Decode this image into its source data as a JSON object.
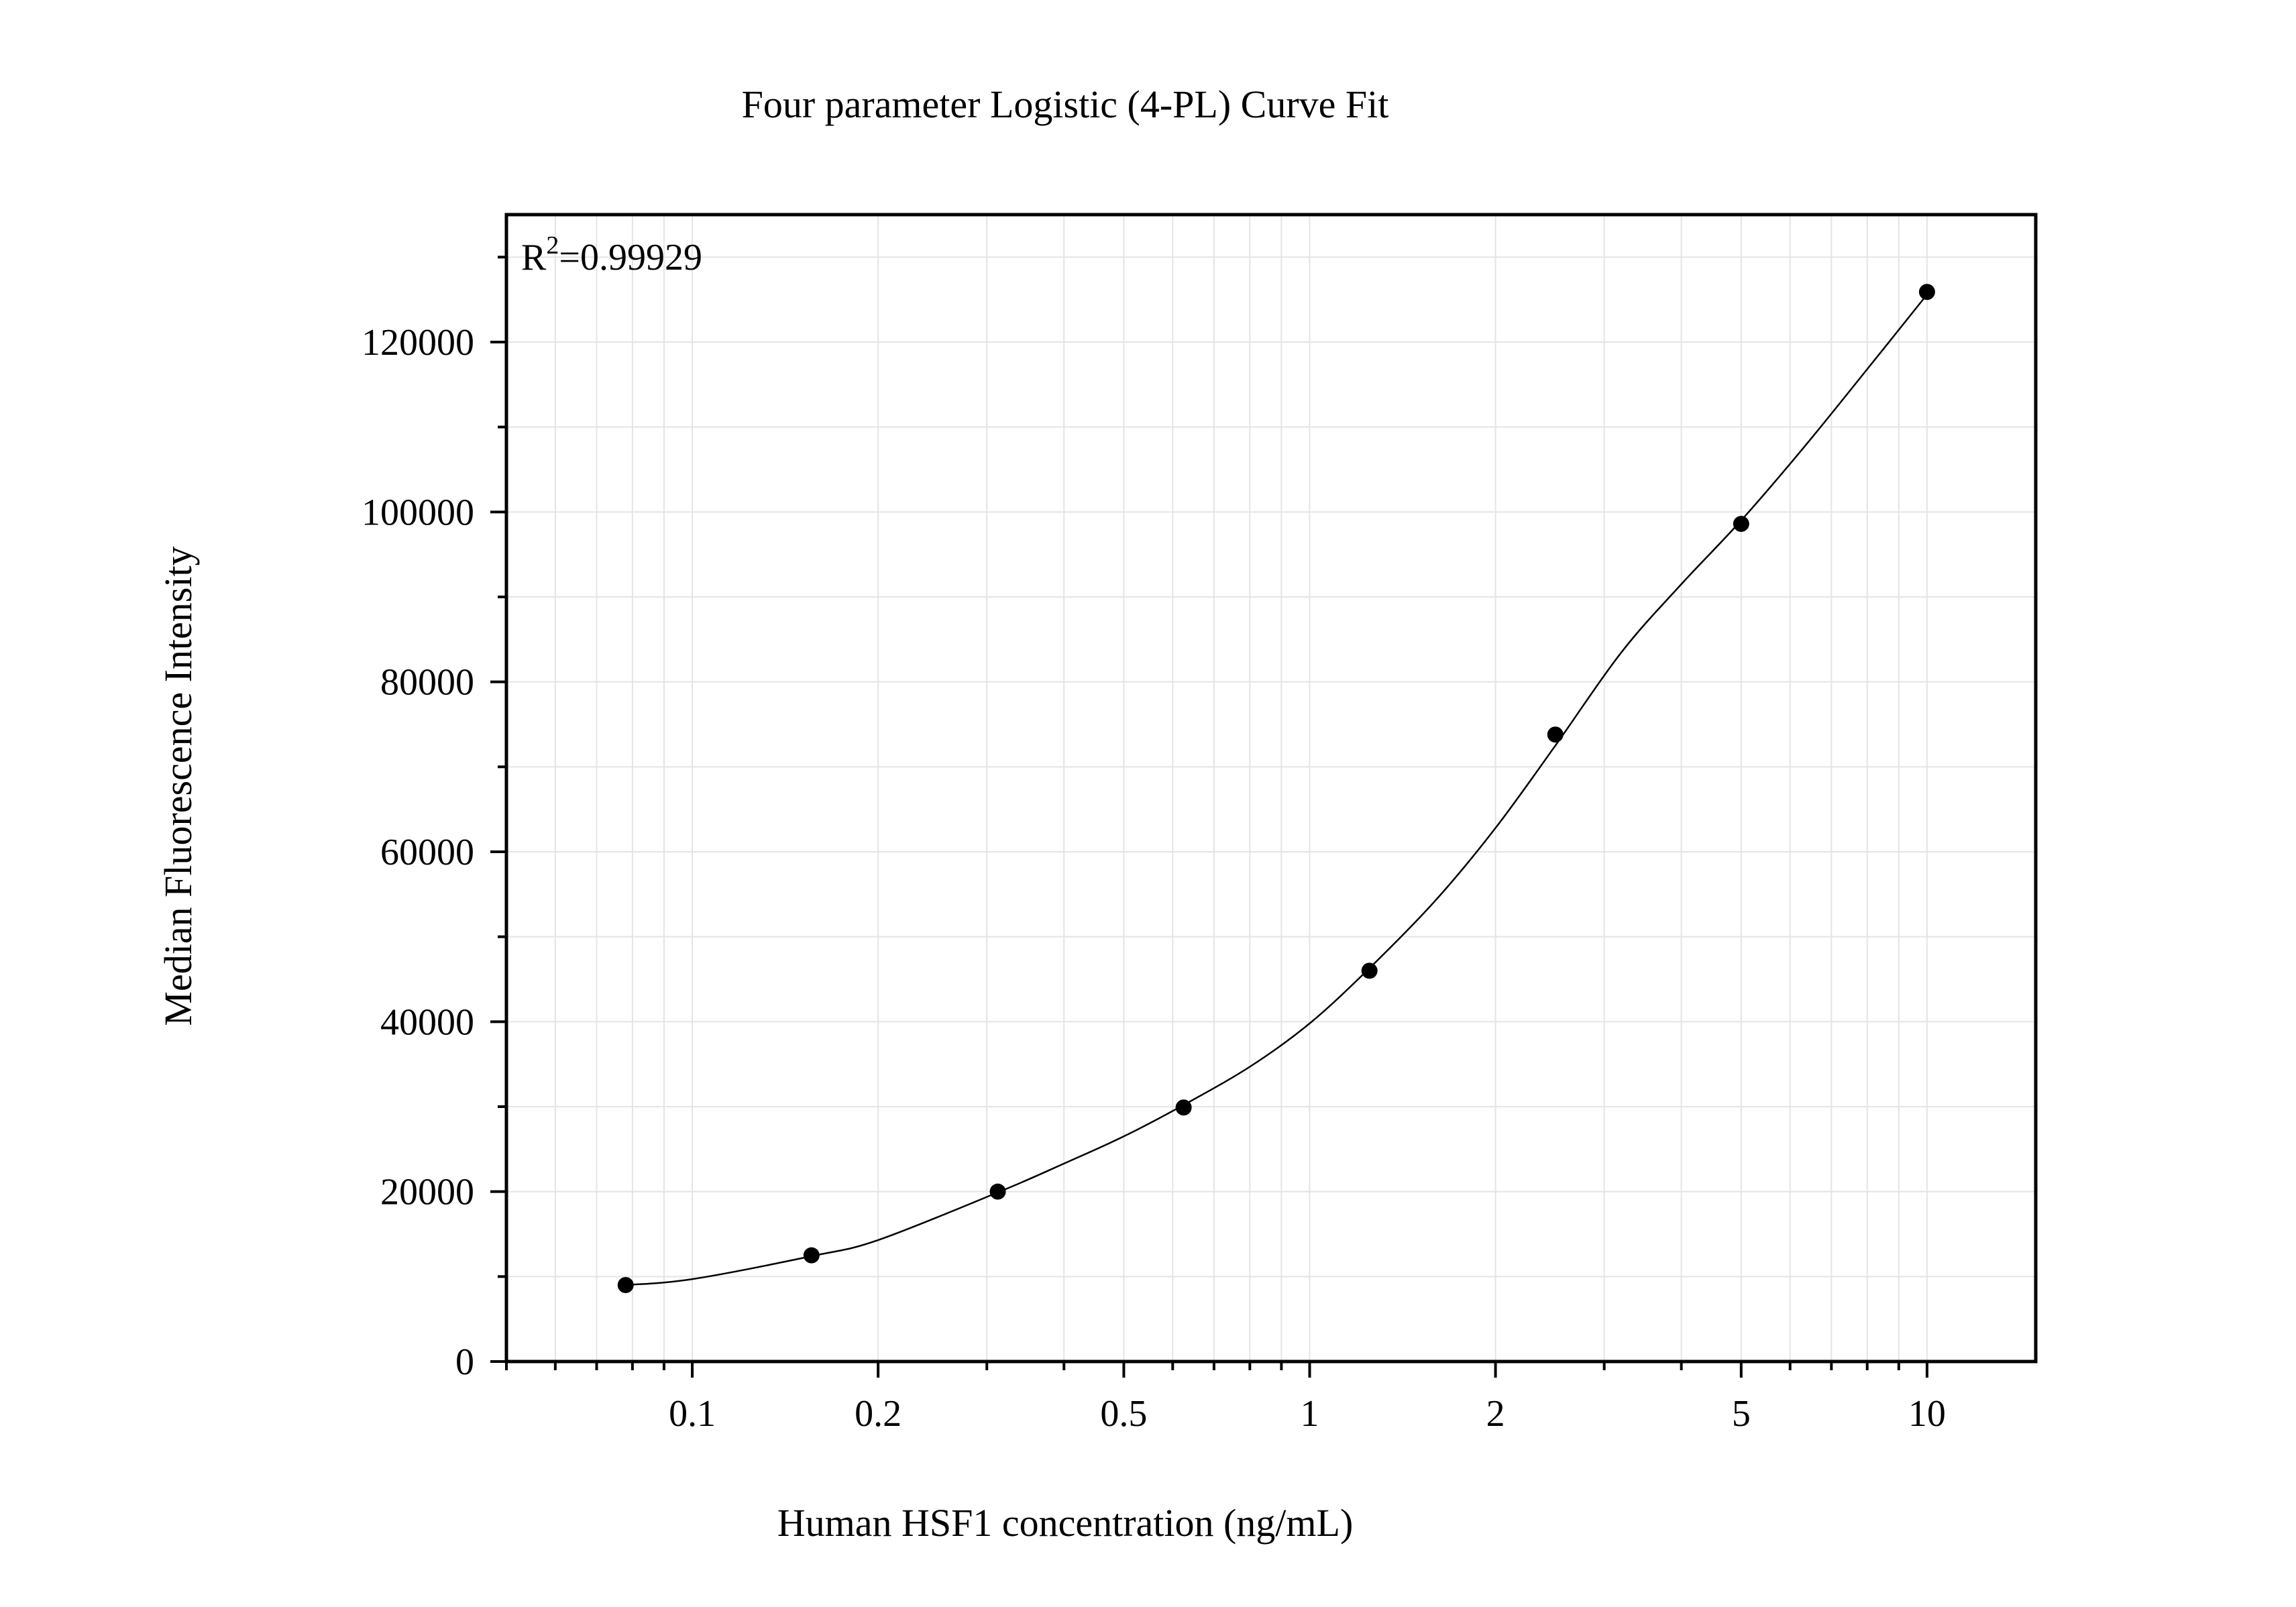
{
  "chart_data": {
    "type": "scatter",
    "title": "Four parameter Logistic (4-PL) Curve Fit",
    "xlabel": "Human HSF1 concentration (ng/mL)",
    "ylabel": "Median Fluorescence Intensity",
    "x_scale": "log",
    "xlim": [
      0.05,
      15
    ],
    "ylim": [
      0,
      135000
    ],
    "x_ticks": [
      0.1,
      0.2,
      0.5,
      1,
      2,
      5,
      10
    ],
    "x_tick_labels": [
      "0.1",
      "0.2",
      "0.5",
      "1",
      "2",
      "5",
      "10"
    ],
    "y_ticks": [
      0,
      20000,
      40000,
      60000,
      80000,
      100000,
      120000
    ],
    "y_tick_labels": [
      "0",
      "20000",
      "40000",
      "60000",
      "80000",
      "100000",
      "120000"
    ],
    "grid": true,
    "annotation": {
      "prefix": "R",
      "superscript": "2",
      "suffix": "=0.99929"
    },
    "series": [
      {
        "points": [
          {
            "x": 0.078,
            "y": 9000
          },
          {
            "x": 0.156,
            "y": 12500
          },
          {
            "x": 0.3125,
            "y": 20000
          },
          {
            "x": 0.625,
            "y": 29900
          },
          {
            "x": 1.25,
            "y": 46000
          },
          {
            "x": 2.5,
            "y": 73800
          },
          {
            "x": 5,
            "y": 98600
          },
          {
            "x": 10,
            "y": 125900
          }
        ]
      }
    ],
    "fit_curve": {
      "model": "4PL",
      "x_range": [
        0.078,
        10
      ],
      "curve_points": [
        {
          "x": 0.078,
          "y": 9000
        },
        {
          "x": 0.1,
          "y": 9700
        },
        {
          "x": 0.156,
          "y": 12400
        },
        {
          "x": 0.2,
          "y": 14300
        },
        {
          "x": 0.3125,
          "y": 19900
        },
        {
          "x": 0.4,
          "y": 23300
        },
        {
          "x": 0.5,
          "y": 26500
        },
        {
          "x": 0.625,
          "y": 30200
        },
        {
          "x": 0.8,
          "y": 34700
        },
        {
          "x": 1,
          "y": 39800
        },
        {
          "x": 1.25,
          "y": 46300
        },
        {
          "x": 1.6,
          "y": 54300
        },
        {
          "x": 2,
          "y": 62800
        },
        {
          "x": 2.5,
          "y": 72500
        },
        {
          "x": 3.2,
          "y": 83500
        },
        {
          "x": 4,
          "y": 91500
        },
        {
          "x": 5,
          "y": 99000
        },
        {
          "x": 6.3,
          "y": 107500
        },
        {
          "x": 8,
          "y": 116800
        },
        {
          "x": 10,
          "y": 125600
        }
      ]
    }
  }
}
